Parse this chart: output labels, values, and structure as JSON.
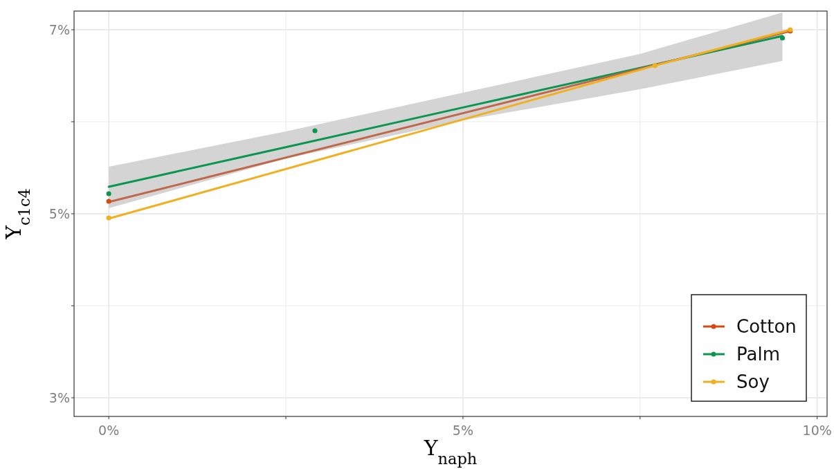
{
  "chart_data": {
    "type": "scatter",
    "xlabel": "Y$_{naph}$",
    "ylabel": "Y$_{c1c4}$",
    "xlim": [
      -0.49,
      10.14
    ],
    "ylim": [
      2.797,
      7.203
    ],
    "xticks": [
      {
        "value": 0,
        "label": "0%"
      },
      {
        "value": 2.5,
        "label": null
      },
      {
        "value": 5,
        "label": "5%"
      },
      {
        "value": 7.5,
        "label": null
      },
      {
        "value": 10,
        "label": "10%"
      }
    ],
    "yticks": [
      {
        "value": 3,
        "label": "3%"
      },
      {
        "value": 4,
        "label": null
      },
      {
        "value": 5,
        "label": "5%"
      },
      {
        "value": 6,
        "label": null
      },
      {
        "value": 7,
        "label": "7%"
      }
    ],
    "grid": true,
    "legend": "bottom right",
    "marker": "circle",
    "series": [
      {
        "type": "line",
        "marker": "none",
        "color": "#0a9650",
        "x": [
          0,
          2.5,
          5,
          7.5,
          9.51
        ],
        "values": [
          5.293,
          5.724,
          6.155,
          6.585,
          6.932
        ],
        "lower": [
          5.06,
          5.6,
          6.015,
          6.353,
          6.662
        ],
        "upper": [
          5.511,
          5.895,
          6.316,
          6.737,
          7.188
        ]
      },
      {
        "type": "line",
        "marker": "none",
        "color": "#c0674a",
        "x": [
          0,
          9.62
        ],
        "values": [
          5.128,
          6.985
        ]
      },
      {
        "type": "line",
        "marker": "none",
        "color": "#f0b020",
        "x": [
          0,
          7.71,
          9.62
        ],
        "values": [
          4.947,
          6.61,
          7.0
        ]
      },
      {
        "name": "Cotton",
        "color": "#d44a12",
        "x": [
          0,
          9.62
        ],
        "values": [
          5.135,
          6.985
        ]
      },
      {
        "name": "Palm",
        "color": "#0a9650",
        "x": [
          0,
          2.91,
          9.51
        ],
        "values": [
          5.218,
          5.902,
          6.91
        ]
      },
      {
        "name": "Soy",
        "color": "#f0b020",
        "x": [
          0,
          7.71,
          9.62
        ],
        "values": [
          4.955,
          6.61,
          7.0
        ]
      }
    ]
  }
}
